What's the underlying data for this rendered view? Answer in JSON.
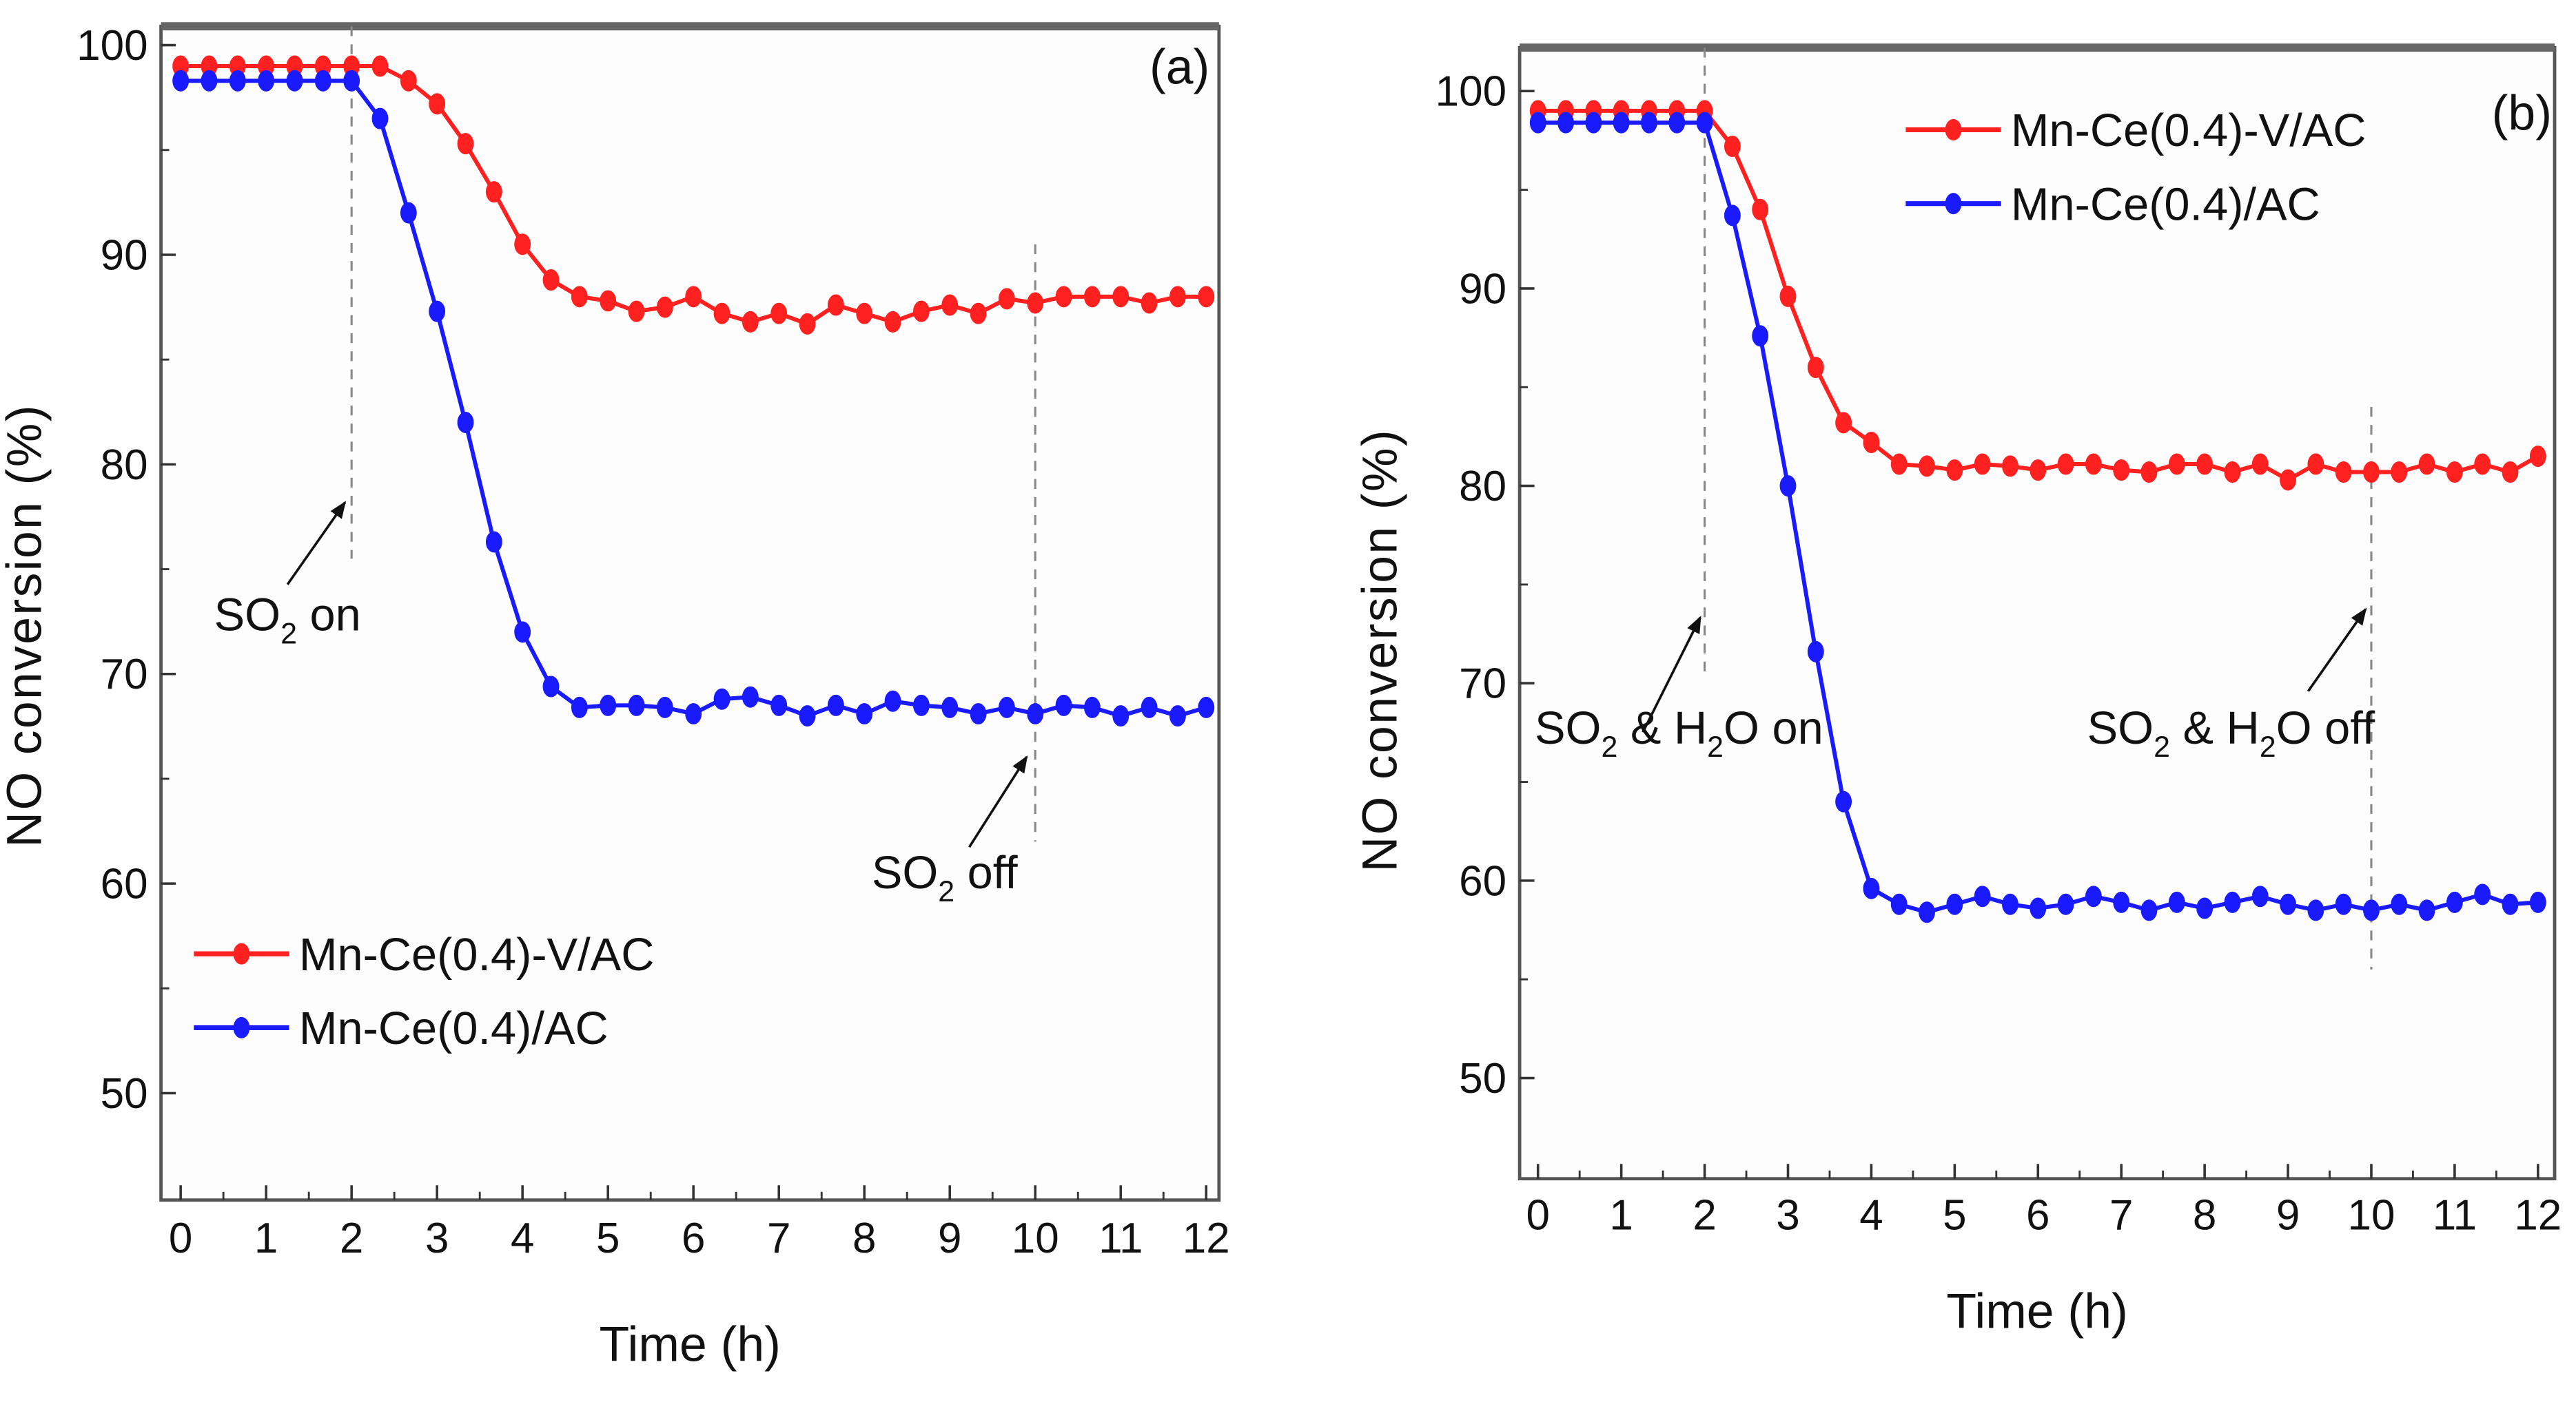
{
  "chart_data": [
    {
      "type": "line",
      "panel_label": "(a)",
      "xlabel": "Time (h)",
      "ylabel": "NO conversion (%)",
      "xlim": [
        -0.23,
        12.15
      ],
      "ylim": [
        44.9,
        100.9
      ],
      "xticks": [
        "0",
        "1",
        "2",
        "3",
        "4",
        "5",
        "6",
        "7",
        "8",
        "9",
        "10",
        "11",
        "12"
      ],
      "yticks": [
        "50",
        "60",
        "70",
        "80",
        "90",
        "100"
      ],
      "legend_position": "bottom-left",
      "series": [
        {
          "name": "Mn-Ce(0.4)-V/AC",
          "color": "#ff2020",
          "values": [
            99,
            99,
            99,
            99,
            99,
            99,
            99,
            99,
            98.3,
            97.2,
            95.3,
            93,
            90.5,
            88.8,
            88,
            87.8,
            87.3,
            87.5,
            88,
            87.2,
            86.8,
            87.2,
            86.7,
            87.6,
            87.2,
            86.8,
            87.3,
            87.6,
            87.2,
            87.9,
            87.7,
            88,
            88,
            88,
            87.7,
            88,
            88
          ]
        },
        {
          "name": "Mn-Ce(0.4)/AC",
          "color": "#1a1aff",
          "values": [
            98.3,
            98.3,
            98.3,
            98.3,
            98.3,
            98.3,
            98.3,
            96.5,
            92,
            87.3,
            82,
            76.3,
            72,
            69.4,
            68.4,
            68.5,
            68.5,
            68.4,
            68.1,
            68.8,
            68.9,
            68.5,
            68,
            68.5,
            68.1,
            68.7,
            68.5,
            68.4,
            68.1,
            68.4,
            68.1,
            68.5,
            68.4,
            68,
            68.4,
            68,
            68.4
          ]
        }
      ],
      "annotations": [
        {
          "parts": [
            "SO",
            "2",
            " on"
          ],
          "x": 2,
          "line_from": 100.9,
          "line_to": 75.5
        },
        {
          "parts": [
            "SO",
            "2",
            " off"
          ],
          "x": 10,
          "line_from": 90.5,
          "line_to": 62
        }
      ]
    },
    {
      "type": "line",
      "panel_label": "(b)",
      "xlabel": "Time (h)",
      "ylabel": "NO conversion (%)",
      "xlim": [
        -0.22,
        12.2
      ],
      "ylim": [
        44.9,
        102.2
      ],
      "xticks": [
        "0",
        "1",
        "2",
        "3",
        "4",
        "5",
        "6",
        "7",
        "8",
        "9",
        "10",
        "11",
        "12"
      ],
      "yticks": [
        "50",
        "60",
        "70",
        "80",
        "90",
        "100"
      ],
      "legend_position": "top-center",
      "series": [
        {
          "name": "Mn-Ce(0.4)-V/AC",
          "color": "#ff2020",
          "values": [
            99,
            99,
            99,
            99,
            99,
            99,
            99,
            97.2,
            94,
            89.6,
            86,
            83.2,
            82.2,
            81.1,
            81,
            80.8,
            81.1,
            81,
            80.8,
            81.1,
            81.1,
            80.8,
            80.7,
            81.1,
            81.1,
            80.7,
            81.1,
            80.3,
            81.1,
            80.7,
            80.7,
            80.7,
            81.1,
            80.7,
            81.1,
            80.7,
            81.5
          ]
        },
        {
          "name": "Mn-Ce(0.4)/AC",
          "color": "#1a1aff",
          "values": [
            98.4,
            98.4,
            98.4,
            98.4,
            98.4,
            98.4,
            98.4,
            93.7,
            87.6,
            80,
            71.6,
            64,
            59.6,
            58.8,
            58.4,
            58.8,
            59.2,
            58.8,
            58.6,
            58.8,
            59.2,
            58.9,
            58.5,
            58.9,
            58.6,
            58.9,
            59.2,
            58.8,
            58.5,
            58.8,
            58.5,
            58.8,
            58.5,
            58.9,
            59.3,
            58.8,
            58.9
          ]
        }
      ],
      "annotations": [
        {
          "parts": [
            "SO",
            "2",
            " & H",
            "2",
            "O on"
          ],
          "x": 2,
          "line_from": 102.2,
          "line_to": 70.5
        },
        {
          "parts": [
            "SO",
            "2",
            " & H",
            "2",
            "O off"
          ],
          "x": 10,
          "line_from": 84,
          "line_to": 55.5
        }
      ]
    }
  ]
}
